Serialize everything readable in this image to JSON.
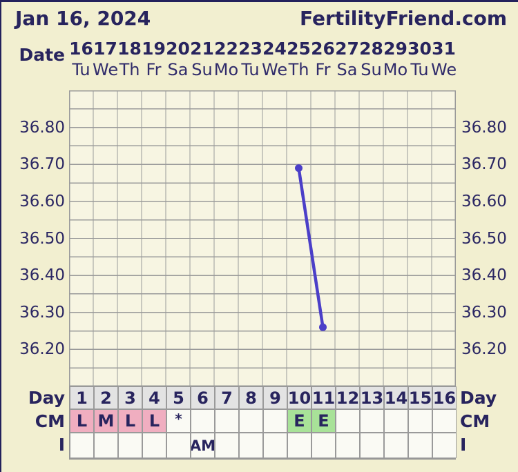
{
  "header": {
    "date_title": "Jan 16, 2024",
    "site_title": "FertilityFriend.com"
  },
  "axis": {
    "date_label": "Date",
    "dates": [
      "16",
      "17",
      "18",
      "19",
      "20",
      "21",
      "22",
      "23",
      "24",
      "25",
      "26",
      "27",
      "28",
      "29",
      "30",
      "31"
    ],
    "weekdays": [
      "Tu",
      "We",
      "Th",
      "Fr",
      "Sa",
      "Su",
      "Mo",
      "Tu",
      "We",
      "Th",
      "Fr",
      "Sa",
      "Su",
      "Mo",
      "Tu",
      "We"
    ],
    "y_labels": [
      "36.80",
      "36.70",
      "36.60",
      "36.50",
      "36.40",
      "36.30",
      "36.20"
    ]
  },
  "chart_data": {
    "type": "line",
    "title": "Basal body temperature chart",
    "x_cycle_days": [
      10,
      11
    ],
    "x_dates": [
      "25",
      "26"
    ],
    "values": [
      36.69,
      36.26
    ],
    "ylim": [
      36.1,
      36.9
    ],
    "y_major_ticks": [
      36.8,
      36.7,
      36.6,
      36.5,
      36.4,
      36.3,
      36.2
    ],
    "y_minor_step": 0.05,
    "columns": 16,
    "grid": true,
    "legend_position": "none",
    "line_color": "#4b3fc8",
    "point_color": "#4b3fc8"
  },
  "table": {
    "labels": {
      "day": "Day",
      "cm": "CM",
      "i": "I"
    },
    "days": [
      "1",
      "2",
      "3",
      "4",
      "5",
      "6",
      "7",
      "8",
      "9",
      "10",
      "11",
      "12",
      "13",
      "14",
      "15",
      "16"
    ],
    "cm_cells": [
      {
        "text": "L",
        "bg": "pink"
      },
      {
        "text": "M",
        "bg": "pink"
      },
      {
        "text": "L",
        "bg": "pink"
      },
      {
        "text": "L",
        "bg": "pink"
      },
      {
        "text": "*",
        "bg": "none"
      },
      {
        "text": "",
        "bg": "none"
      },
      {
        "text": "",
        "bg": "none"
      },
      {
        "text": "",
        "bg": "none"
      },
      {
        "text": "",
        "bg": "none"
      },
      {
        "text": "E",
        "bg": "green"
      },
      {
        "text": "E",
        "bg": "green"
      },
      {
        "text": "",
        "bg": "none"
      },
      {
        "text": "",
        "bg": "none"
      },
      {
        "text": "",
        "bg": "none"
      },
      {
        "text": "",
        "bg": "none"
      },
      {
        "text": "",
        "bg": "none"
      }
    ],
    "i_cells": [
      "",
      "",
      "",
      "",
      "",
      "AM",
      "",
      "",
      "",
      "",
      "",
      "",
      "",
      "",
      "",
      ""
    ]
  },
  "colors": {
    "page_bg": "#f2efd0",
    "chart_bg": "#f7f5e2",
    "navy_text": "#28245e",
    "grid_line": "#9a9a9a",
    "day_cell_bg": "#e3e3e3",
    "empty_cell_bg": "#fafaf4",
    "cm_pink": "#f0aec0",
    "cm_green": "#a8e298",
    "line": "#4b3fc8",
    "frame_border": "#23215c"
  }
}
